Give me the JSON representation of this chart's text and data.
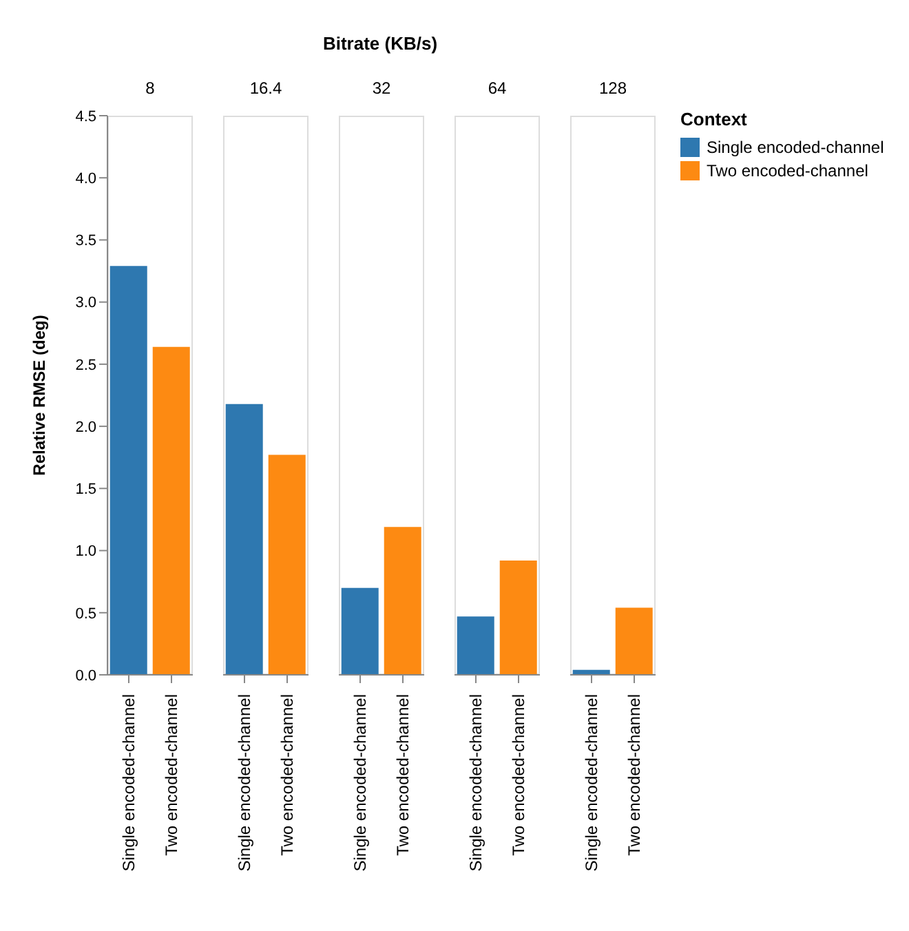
{
  "chart_data": [
    {
      "type": "bar",
      "title": "8",
      "annotations": [
        "Bitrate (KB/s)"
      ],
      "ylabel": "Relative RMSE (deg)",
      "categories": [
        "Single encoded-channel",
        "Two encoded-channel"
      ],
      "stacked": true,
      "series": [
        {
          "color": "#2e78b0",
          "values": [
            3.29,
            null
          ]
        },
        {
          "color": "#fd8a12",
          "values": [
            null,
            2.64
          ]
        }
      ],
      "ylim": [
        0,
        4.5
      ],
      "yticks": [
        {
          "value": 0,
          "label": "0.0"
        },
        {
          "value": 0.5,
          "label": "0.5"
        },
        {
          "value": 1,
          "label": "1.0"
        },
        {
          "value": 1.5,
          "label": "1.5"
        },
        {
          "value": 2,
          "label": "2.0"
        },
        {
          "value": 2.5,
          "label": "2.5"
        },
        {
          "value": 3,
          "label": "3.0"
        },
        {
          "value": 3.5,
          "label": "3.5"
        },
        {
          "value": 4,
          "label": "4.0"
        },
        {
          "value": 4.5,
          "label": "4.5"
        }
      ]
    },
    {
      "type": "bar",
      "title": "16.4",
      "categories": [
        "Single encoded-channel",
        "Two encoded-channel"
      ],
      "stacked": true,
      "series": [
        {
          "color": "#2e78b0",
          "values": [
            2.18,
            null
          ]
        },
        {
          "color": "#fd8a12",
          "values": [
            null,
            1.77
          ]
        }
      ],
      "ylim": [
        0,
        4.5
      ],
      "tick_labels": "x"
    },
    {
      "type": "bar",
      "title": "32",
      "categories": [
        "Single encoded-channel",
        "Two encoded-channel"
      ],
      "stacked": true,
      "series": [
        {
          "color": "#2e78b0",
          "values": [
            0.7,
            null
          ]
        },
        {
          "color": "#fd8a12",
          "values": [
            null,
            1.19
          ]
        }
      ],
      "ylim": [
        0,
        4.5
      ],
      "tick_labels": "x"
    },
    {
      "type": "bar",
      "title": "64",
      "categories": [
        "Single encoded-channel",
        "Two encoded-channel"
      ],
      "stacked": true,
      "series": [
        {
          "color": "#2e78b0",
          "values": [
            0.47,
            null
          ]
        },
        {
          "color": "#fd8a12",
          "values": [
            null,
            0.92
          ]
        }
      ],
      "ylim": [
        0,
        4.5
      ],
      "tick_labels": "x"
    },
    {
      "type": "bar",
      "title": "128",
      "categories": [
        "Single encoded-channel",
        "Two encoded-channel"
      ],
      "stacked": true,
      "series": [
        {
          "name": "Single encoded-channel",
          "color": "#2e78b0",
          "values": [
            0.04,
            null
          ]
        },
        {
          "name": "Two encoded-channel",
          "color": "#fd8a12",
          "values": [
            null,
            0.54
          ]
        }
      ],
      "ylim": [
        0,
        4.5
      ],
      "tick_labels": "x",
      "legend": "right",
      "legend_title": "Context"
    }
  ]
}
